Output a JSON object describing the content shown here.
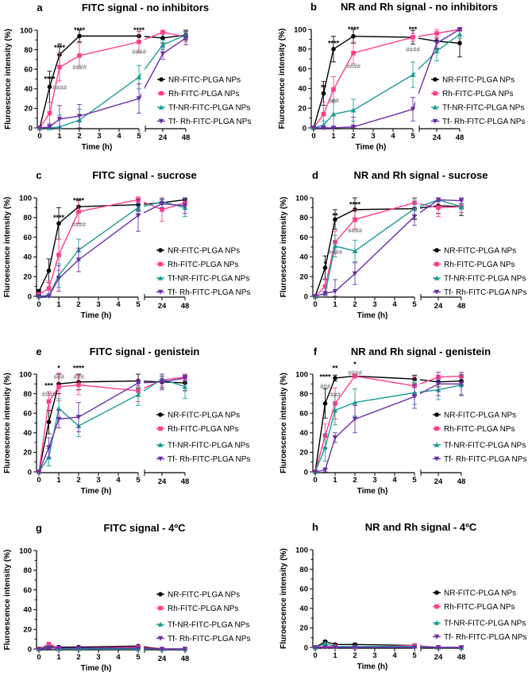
{
  "chart_data": {
    "type": "line",
    "xlabel": "Time (h)",
    "ylabel": "Fluroescence intensity (%)",
    "x": [
      0,
      0.5,
      1,
      2,
      5,
      24,
      48
    ],
    "x_tick_labels": [
      "0",
      "1",
      "2",
      "3",
      "4",
      "5",
      "24",
      "48"
    ],
    "y_tick_labels": [
      "0",
      "20",
      "40",
      "60",
      "80",
      "100"
    ],
    "ylim": [
      0,
      100
    ],
    "x_axis_break": "between 5 and 24",
    "legend_position": "right",
    "series_names": [
      "NR-FITC-PLGA NPs",
      "Rh-FITC-PLGA NPs",
      "Tf-NR-FITC-PLGA NPs",
      "Tf- Rh-FITC-PLGA NPs"
    ],
    "series_colors": [
      "#000000",
      "#ff3d8b",
      "#1a9c96",
      "#6a2fa8"
    ],
    "series_markers": [
      "circle",
      "square",
      "triangle-up",
      "triangle-down"
    ],
    "panels": [
      {
        "letter": "a",
        "title": "FITC signal - no inhibitors",
        "values": [
          [
            0,
            42,
            75,
            94,
            94,
            92,
            95
          ],
          [
            0,
            15,
            62,
            74,
            88,
            98,
            93
          ],
          [
            0,
            0,
            1,
            8,
            52,
            85,
            95
          ],
          [
            0,
            1,
            9,
            12,
            30,
            76,
            92
          ]
        ],
        "errors": [
          [
            0,
            16,
            11,
            6,
            5,
            5,
            5
          ],
          [
            0,
            11,
            14,
            13,
            11,
            2,
            5
          ],
          [
            0,
            4,
            12,
            11,
            12,
            5,
            3
          ],
          [
            0,
            3,
            14,
            12,
            15,
            6,
            7
          ]
        ],
        "annotations": [
          {
            "x": 0.5,
            "y": 50,
            "text": "****"
          },
          {
            "x": 1,
            "y": 82,
            "text": "****"
          },
          {
            "x": 1,
            "y": 44,
            "text": "####"
          },
          {
            "x": 2,
            "y": 100,
            "text": "****"
          },
          {
            "x": 2,
            "y": 62,
            "text": "####"
          },
          {
            "x": 5,
            "y": 100,
            "text": "****"
          },
          {
            "x": 5,
            "y": 78,
            "text": "####"
          }
        ]
      },
      {
        "letter": "b",
        "title": "NR and Rh signal - no inhibitors",
        "values": [
          [
            0,
            35,
            80,
            93,
            92,
            88,
            86
          ],
          [
            0,
            14,
            39,
            76,
            92,
            96,
            100
          ],
          [
            0,
            3,
            14,
            18,
            54,
            78,
            95
          ],
          [
            0,
            0,
            0,
            1,
            19,
            86,
            100
          ]
        ],
        "errors": [
          [
            0,
            12,
            13,
            7,
            7,
            8,
            14
          ],
          [
            0,
            12,
            13,
            11,
            4,
            4,
            1
          ],
          [
            0,
            4,
            14,
            11,
            13,
            10,
            4
          ],
          [
            0,
            1,
            1,
            10,
            12,
            5,
            1
          ]
        ],
        "annotations": [
          {
            "x": 0.5,
            "y": 41,
            "text": "**"
          },
          {
            "x": 1,
            "y": 86,
            "text": "****"
          },
          {
            "x": 1,
            "y": 28,
            "text": "###"
          },
          {
            "x": 2,
            "y": 100,
            "text": "****"
          },
          {
            "x": 2,
            "y": 63,
            "text": "####"
          },
          {
            "x": 5,
            "y": 100,
            "text": "***"
          },
          {
            "x": 5,
            "y": 80,
            "text": "####"
          }
        ]
      },
      {
        "letter": "c",
        "title": "FITC signal - sucrose",
        "values": [
          [
            5,
            26,
            74,
            91,
            93,
            95,
            98
          ],
          [
            2,
            8,
            42,
            86,
            98,
            88,
            95
          ],
          [
            0,
            1,
            21,
            47,
            90,
            96,
            90
          ],
          [
            0,
            0,
            18,
            37,
            82,
            94,
            92
          ]
        ],
        "errors": [
          [
            2,
            12,
            16,
            6,
            6,
            5,
            2
          ],
          [
            2,
            8,
            16,
            12,
            3,
            12,
            4
          ],
          [
            1,
            2,
            12,
            11,
            4,
            3,
            9
          ],
          [
            1,
            1,
            13,
            12,
            16,
            4,
            8
          ]
        ],
        "annotations": [
          {
            "x": 1,
            "y": 80,
            "text": "****"
          },
          {
            "x": 2,
            "y": 97,
            "text": "****"
          },
          {
            "x": 2,
            "y": 73,
            "text": "####"
          }
        ]
      },
      {
        "letter": "d",
        "title": "NR and Rh signal - sucrose",
        "values": [
          [
            0,
            29,
            78,
            88,
            89,
            92,
            91
          ],
          [
            0,
            10,
            55,
            78,
            95,
            90,
            91
          ],
          [
            0,
            3,
            51,
            46,
            89,
            98,
            91
          ],
          [
            0,
            3,
            5,
            23,
            81,
            98,
            97
          ]
        ],
        "errors": [
          [
            0,
            12,
            10,
            12,
            11,
            8,
            9
          ],
          [
            0,
            8,
            11,
            10,
            5,
            9,
            6
          ],
          [
            0,
            2,
            11,
            11,
            10,
            2,
            3
          ],
          [
            0,
            2,
            12,
            11,
            9,
            2,
            3
          ]
        ],
        "annotations": [
          {
            "x": 0.5,
            "y": 33,
            "text": "*"
          },
          {
            "x": 1,
            "y": 82,
            "text": "**"
          },
          {
            "x": 1,
            "y": 45,
            "text": "####"
          },
          {
            "x": 2,
            "y": 93,
            "text": "****"
          },
          {
            "x": 2,
            "y": 67,
            "text": "####"
          }
        ]
      },
      {
        "letter": "e",
        "title": "FITC signal - genistein",
        "values": [
          [
            0,
            51,
            90,
            92,
            93,
            92,
            91
          ],
          [
            0,
            72,
            87,
            89,
            83,
            94,
            97
          ],
          [
            0,
            15,
            65,
            47,
            79,
            95,
            87
          ],
          [
            0,
            25,
            54,
            56,
            91,
            92,
            96
          ]
        ],
        "errors": [
          [
            0,
            12,
            10,
            8,
            7,
            6,
            8
          ],
          [
            0,
            10,
            14,
            10,
            11,
            6,
            3
          ],
          [
            0,
            9,
            10,
            11,
            11,
            3,
            12
          ],
          [
            0,
            10,
            9,
            15,
            3,
            8,
            3
          ]
        ],
        "annotations": [
          {
            "x": 0.5,
            "y": 91,
            "text": "***"
          },
          {
            "x": 0.5,
            "y": 85,
            "text": "####"
          },
          {
            "x": 1,
            "y": 106,
            "text": "*"
          },
          {
            "x": 1,
            "y": 101,
            "text": "###"
          },
          {
            "x": 2,
            "y": 106,
            "text": "****"
          },
          {
            "x": 2,
            "y": 101,
            "text": "###"
          }
        ]
      },
      {
        "letter": "f",
        "title": "NR and Rh signal - genistein",
        "values": [
          [
            0,
            70,
            96,
            98,
            95,
            92,
            93
          ],
          [
            0,
            37,
            70,
            98,
            88,
            97,
            98
          ],
          [
            0,
            25,
            63,
            71,
            81,
            84,
            89
          ],
          [
            0,
            2,
            35,
            54,
            77,
            90,
            90
          ]
        ],
        "errors": [
          [
            0,
            15,
            3,
            1,
            4,
            5,
            4
          ],
          [
            0,
            12,
            16,
            1,
            10,
            2,
            2
          ],
          [
            0,
            14,
            15,
            14,
            12,
            10,
            10
          ],
          [
            0,
            2,
            5,
            14,
            12,
            12,
            12
          ]
        ],
        "annotations": [
          {
            "x": 0.5,
            "y": 97,
            "text": "****"
          },
          {
            "x": 0.5,
            "y": 88,
            "text": "###"
          },
          {
            "x": 1,
            "y": 106,
            "text": "**"
          },
          {
            "x": 1,
            "y": 80,
            "text": "###"
          },
          {
            "x": 2,
            "y": 110,
            "text": "*"
          },
          {
            "x": 2,
            "y": 104,
            "text": "####"
          }
        ]
      },
      {
        "letter": "g",
        "title": "FITC signal - 4ºC",
        "values": [
          [
            0,
            3,
            2,
            2,
            3,
            0,
            0
          ],
          [
            0,
            5,
            1,
            1,
            2,
            0,
            0
          ],
          [
            0,
            2,
            0,
            0,
            0,
            0,
            0
          ],
          [
            0,
            1,
            1,
            1,
            1,
            0,
            0
          ]
        ],
        "errors": [
          [
            0,
            1,
            1,
            1,
            1,
            0,
            0
          ],
          [
            0,
            1,
            1,
            1,
            1,
            0,
            0
          ],
          [
            0,
            1,
            0,
            0,
            0,
            0,
            0
          ],
          [
            0,
            1,
            0,
            0,
            0,
            0,
            0
          ]
        ],
        "annotations": []
      },
      {
        "letter": "h",
        "title": "NR and Rh signal - 4ºC",
        "values": [
          [
            0,
            6,
            3,
            3,
            2,
            0,
            0
          ],
          [
            0,
            1,
            1,
            0,
            2,
            0,
            0
          ],
          [
            0,
            4,
            1,
            1,
            1,
            0,
            0
          ],
          [
            0,
            0,
            0,
            0,
            0,
            0,
            0
          ]
        ],
        "errors": [
          [
            0,
            1,
            1,
            1,
            1,
            0,
            0
          ],
          [
            0,
            1,
            1,
            1,
            1,
            0,
            0
          ],
          [
            0,
            1,
            0,
            0,
            0,
            0,
            0
          ],
          [
            0,
            0,
            0,
            0,
            0,
            0,
            0
          ]
        ],
        "annotations": []
      }
    ]
  }
}
